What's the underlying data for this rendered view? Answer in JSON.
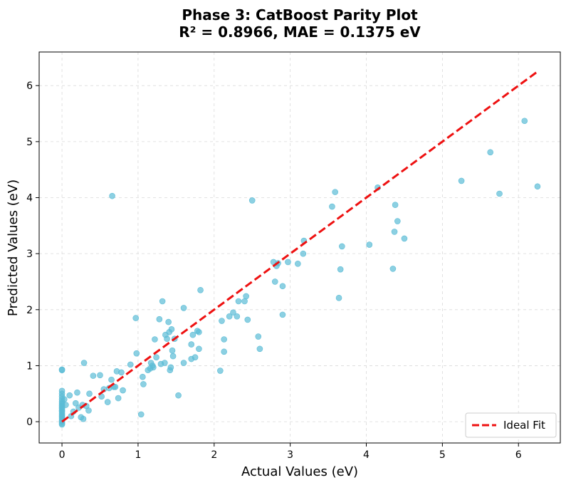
{
  "chart_data": {
    "type": "scatter",
    "title": [
      "Phase 3: CatBoost Parity Plot",
      "R² = 0.8966, MAE = 0.1375 eV"
    ],
    "xlabel": "Actual Values (eV)",
    "ylabel": "Predicted Values (eV)",
    "xlim": [
      -0.3,
      6.55
    ],
    "ylim": [
      -0.38,
      6.6
    ],
    "xticks": [
      0,
      1,
      2,
      3,
      4,
      5,
      6
    ],
    "yticks": [
      0,
      1,
      2,
      3,
      4,
      5,
      6
    ],
    "grid": true,
    "legend_position": "bottom-right",
    "colors": {
      "points": "#5bbcd6",
      "ideal_fit": "#ee1111"
    },
    "ideal_fit": {
      "label": "Ideal Fit",
      "x": [
        0,
        6.25
      ],
      "y": [
        0,
        6.25
      ]
    },
    "points": [
      [
        0,
        -0.05
      ],
      [
        0,
        -0.03
      ],
      [
        0,
        0.0
      ],
      [
        0,
        0.02
      ],
      [
        0,
        0.05
      ],
      [
        0,
        0.08
      ],
      [
        0,
        0.1
      ],
      [
        0,
        0.12
      ],
      [
        0,
        0.15
      ],
      [
        0,
        0.18
      ],
      [
        0,
        0.2
      ],
      [
        0,
        0.23
      ],
      [
        0,
        0.25
      ],
      [
        0,
        0.28
      ],
      [
        0,
        0.3
      ],
      [
        0,
        0.33
      ],
      [
        0,
        0.36
      ],
      [
        0,
        0.4
      ],
      [
        0,
        0.45
      ],
      [
        0,
        0.5
      ],
      [
        0,
        0.55
      ],
      [
        0,
        0.92
      ],
      [
        0,
        0.93
      ],
      [
        0.03,
        0.4
      ],
      [
        0.05,
        0.3
      ],
      [
        0.1,
        0.47
      ],
      [
        0.12,
        0.1
      ],
      [
        0.15,
        0.18
      ],
      [
        0.18,
        0.33
      ],
      [
        0.2,
        0.52
      ],
      [
        0.22,
        0.25
      ],
      [
        0.25,
        0.08
      ],
      [
        0.27,
        0.3
      ],
      [
        0.28,
        0.05
      ],
      [
        0.29,
        1.05
      ],
      [
        0.32,
        0.28
      ],
      [
        0.35,
        0.2
      ],
      [
        0.36,
        0.5
      ],
      [
        0.41,
        0.82
      ],
      [
        0.5,
        0.83
      ],
      [
        0.52,
        0.45
      ],
      [
        0.55,
        0.58
      ],
      [
        0.6,
        0.35
      ],
      [
        0.62,
        0.6
      ],
      [
        0.65,
        0.75
      ],
      [
        0.66,
        4.03
      ],
      [
        0.68,
        0.62
      ],
      [
        0.7,
        0.62
      ],
      [
        0.72,
        0.9
      ],
      [
        0.74,
        0.42
      ],
      [
        0.78,
        0.88
      ],
      [
        0.8,
        0.56
      ],
      [
        0.9,
        1.02
      ],
      [
        0.97,
        1.85
      ],
      [
        0.98,
        1.22
      ],
      [
        1.04,
        0.13
      ],
      [
        1.06,
        0.8
      ],
      [
        1.07,
        0.67
      ],
      [
        1.13,
        0.92
      ],
      [
        1.16,
        0.95
      ],
      [
        1.17,
        1.05
      ],
      [
        1.19,
        1.0
      ],
      [
        1.2,
        0.97
      ],
      [
        1.22,
        1.47
      ],
      [
        1.24,
        1.15
      ],
      [
        1.28,
        1.83
      ],
      [
        1.3,
        1.03
      ],
      [
        1.32,
        2.15
      ],
      [
        1.35,
        1.05
      ],
      [
        1.36,
        1.55
      ],
      [
        1.38,
        1.48
      ],
      [
        1.4,
        1.78
      ],
      [
        1.41,
        1.6
      ],
      [
        1.42,
        0.92
      ],
      [
        1.43,
        0.97
      ],
      [
        1.44,
        1.65
      ],
      [
        1.45,
        1.27
      ],
      [
        1.46,
        1.17
      ],
      [
        1.48,
        1.48
      ],
      [
        1.53,
        0.47
      ],
      [
        1.6,
        2.03
      ],
      [
        1.6,
        1.05
      ],
      [
        1.7,
        1.12
      ],
      [
        1.7,
        1.38
      ],
      [
        1.72,
        1.55
      ],
      [
        1.75,
        1.15
      ],
      [
        1.78,
        1.62
      ],
      [
        1.8,
        1.3
      ],
      [
        1.8,
        1.6
      ],
      [
        1.82,
        2.35
      ],
      [
        2.08,
        0.91
      ],
      [
        2.1,
        1.8
      ],
      [
        2.13,
        1.47
      ],
      [
        2.13,
        1.25
      ],
      [
        2.2,
        1.88
      ],
      [
        2.25,
        1.95
      ],
      [
        2.3,
        1.88
      ],
      [
        2.32,
        2.15
      ],
      [
        2.4,
        2.15
      ],
      [
        2.42,
        2.24
      ],
      [
        2.44,
        1.82
      ],
      [
        2.5,
        3.95
      ],
      [
        2.58,
        1.52
      ],
      [
        2.6,
        1.3
      ],
      [
        2.78,
        2.85
      ],
      [
        2.8,
        2.5
      ],
      [
        2.82,
        2.78
      ],
      [
        2.84,
        2.83
      ],
      [
        2.9,
        2.42
      ],
      [
        2.9,
        1.91
      ],
      [
        2.97,
        2.85
      ],
      [
        3.1,
        2.82
      ],
      [
        3.17,
        3.0
      ],
      [
        3.18,
        3.23
      ],
      [
        3.55,
        3.84
      ],
      [
        3.59,
        4.1
      ],
      [
        3.64,
        2.21
      ],
      [
        3.66,
        2.72
      ],
      [
        3.68,
        3.13
      ],
      [
        4.04,
        3.16
      ],
      [
        4.15,
        4.18
      ],
      [
        4.35,
        2.73
      ],
      [
        4.37,
        3.39
      ],
      [
        4.38,
        3.87
      ],
      [
        4.41,
        3.58
      ],
      [
        4.5,
        3.27
      ],
      [
        5.25,
        4.3
      ],
      [
        5.63,
        4.81
      ],
      [
        5.75,
        4.07
      ],
      [
        6.08,
        5.37
      ],
      [
        6.25,
        4.2
      ]
    ]
  }
}
